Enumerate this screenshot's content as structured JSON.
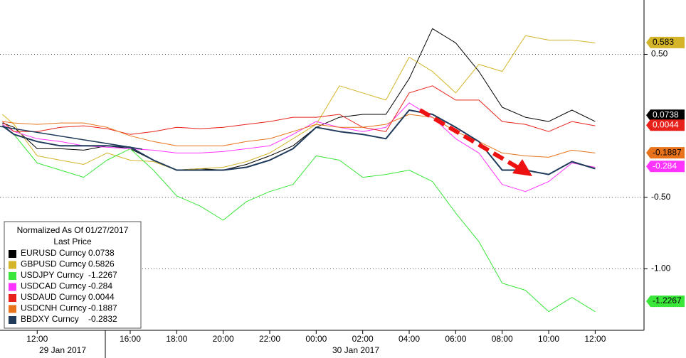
{
  "chart_data": {
    "type": "line",
    "legend_title": "Normalized As Of 01/27/2017",
    "legend_subtitle": "Last Price",
    "legend_corner": "bottom-left",
    "grid": true,
    "x": [
      10.5,
      11,
      12,
      13,
      14,
      15,
      16,
      17,
      18,
      19,
      20,
      21,
      22,
      23,
      24,
      25,
      26,
      27,
      28,
      29,
      30,
      31,
      32,
      33,
      34,
      35,
      36
    ],
    "xlim": [
      10.4,
      38.1
    ],
    "xticks": [
      {
        "value": 12,
        "label": "12:00"
      },
      {
        "value": 16,
        "label": "16:00"
      },
      {
        "value": 18,
        "label": "18:00"
      },
      {
        "value": 20,
        "label": "20:00"
      },
      {
        "value": 22,
        "label": "22:00"
      },
      {
        "value": 24,
        "label": "00:00"
      },
      {
        "value": 26,
        "label": "02:00"
      },
      {
        "value": 28,
        "label": "04:00"
      },
      {
        "value": 30,
        "label": "06:00"
      },
      {
        "value": 32,
        "label": "08:00"
      },
      {
        "value": 34,
        "label": "10:00"
      },
      {
        "value": 36,
        "label": "12:00"
      }
    ],
    "dates": [
      "29 Jan 2017",
      "30 Jan 2017"
    ],
    "ylim": [
      -1.43,
      0.88
    ],
    "yticks": [
      {
        "value": 0.5,
        "label": "0.50"
      },
      {
        "value": -0.5,
        "label": "-0.50"
      },
      {
        "value": -1.0,
        "label": "-1.00"
      }
    ],
    "series": [
      {
        "name": "EURUSD Curncy",
        "color": "#000000",
        "text_color": "#ffffff",
        "width": 1,
        "last": 0.0738,
        "tag": true,
        "values": [
          0.02,
          -0.01,
          -0.16,
          -0.16,
          -0.17,
          -0.14,
          -0.16,
          -0.24,
          -0.31,
          -0.3,
          -0.31,
          -0.27,
          -0.21,
          -0.14,
          -0.01,
          0.06,
          0.08,
          0.08,
          0.33,
          0.68,
          0.58,
          0.38,
          0.13,
          0.06,
          0.03,
          0.11,
          0.03
        ]
      },
      {
        "name": "GBPUSD Curncy",
        "color": "#d4b52a",
        "text_color": "#000000",
        "width": 1,
        "last": 0.5826,
        "tag": true,
        "tag_label": "0.583",
        "values": [
          0.08,
          0.01,
          -0.21,
          -0.24,
          -0.27,
          -0.19,
          -0.24,
          -0.25,
          -0.31,
          -0.3,
          -0.29,
          -0.25,
          -0.19,
          -0.09,
          0.01,
          0.28,
          0.23,
          0.18,
          0.48,
          0.38,
          0.23,
          0.43,
          0.38,
          0.63,
          0.6,
          0.6,
          0.58
        ]
      },
      {
        "name": "USDJPY Curncy",
        "color": "#39e639",
        "text_color": "#000000",
        "width": 1,
        "last": -1.2267,
        "tag": true,
        "values": [
          0.01,
          -0.06,
          -0.26,
          -0.31,
          -0.36,
          -0.24,
          -0.16,
          -0.31,
          -0.49,
          -0.56,
          -0.66,
          -0.53,
          -0.46,
          -0.41,
          -0.21,
          -0.24,
          -0.36,
          -0.34,
          -0.31,
          -0.39,
          -0.61,
          -0.81,
          -1.1,
          -1.15,
          -1.3,
          -1.2,
          -1.3
        ]
      },
      {
        "name": "USDCAD Curncy",
        "color": "#ff33ff",
        "text_color": "#ffffff",
        "width": 1,
        "last": -0.284,
        "tag": true,
        "values": [
          0.01,
          -0.04,
          -0.09,
          -0.11,
          -0.14,
          -0.15,
          -0.16,
          -0.17,
          -0.19,
          -0.19,
          -0.18,
          -0.16,
          -0.14,
          -0.06,
          0.03,
          -0.01,
          -0.04,
          -0.01,
          0.16,
          0.06,
          -0.09,
          -0.19,
          -0.41,
          -0.46,
          -0.39,
          -0.26,
          -0.29
        ]
      },
      {
        "name": "USDAUD Curncy",
        "color": "#e8211a",
        "text_color": "#ffffff",
        "width": 1,
        "last": 0.0044,
        "tag": true,
        "values": [
          0.03,
          -0.04,
          -0.04,
          -0.01,
          0,
          -0.02,
          -0.06,
          -0.04,
          -0.01,
          -0.02,
          -0.01,
          0.01,
          0.03,
          0.06,
          0.06,
          0.08,
          -0.01,
          -0.04,
          0.23,
          0.28,
          0.18,
          0.18,
          0.03,
          0.01,
          -0.04,
          0.03,
          0
        ]
      },
      {
        "name": "USDCNH Curncy",
        "color": "#e8731a",
        "text_color": "#000000",
        "width": 1,
        "last": -0.1887,
        "tag": true,
        "values": [
          0.03,
          0.02,
          0.01,
          0.02,
          0.02,
          -0.01,
          -0.07,
          -0.11,
          -0.14,
          -0.14,
          -0.14,
          -0.11,
          -0.09,
          -0.04,
          0.01,
          -0.01,
          -0.01,
          0.01,
          0.08,
          0.06,
          -0.04,
          -0.11,
          -0.19,
          -0.21,
          -0.22,
          -0.17,
          -0.19
        ]
      },
      {
        "name": "BBDXY Curncy",
        "color": "#1f3a5a",
        "text_color": "#ffffff",
        "width": 2,
        "last": -0.2832,
        "tag": false,
        "values": [
          0,
          -0.06,
          -0.11,
          -0.14,
          -0.14,
          -0.14,
          -0.15,
          -0.24,
          -0.31,
          -0.31,
          -0.31,
          -0.29,
          -0.24,
          -0.16,
          -0.01,
          -0.04,
          -0.06,
          -0.09,
          0.11,
          0.08,
          -0.01,
          -0.11,
          -0.31,
          -0.31,
          -0.34,
          -0.25,
          -0.3
        ]
      }
    ]
  }
}
